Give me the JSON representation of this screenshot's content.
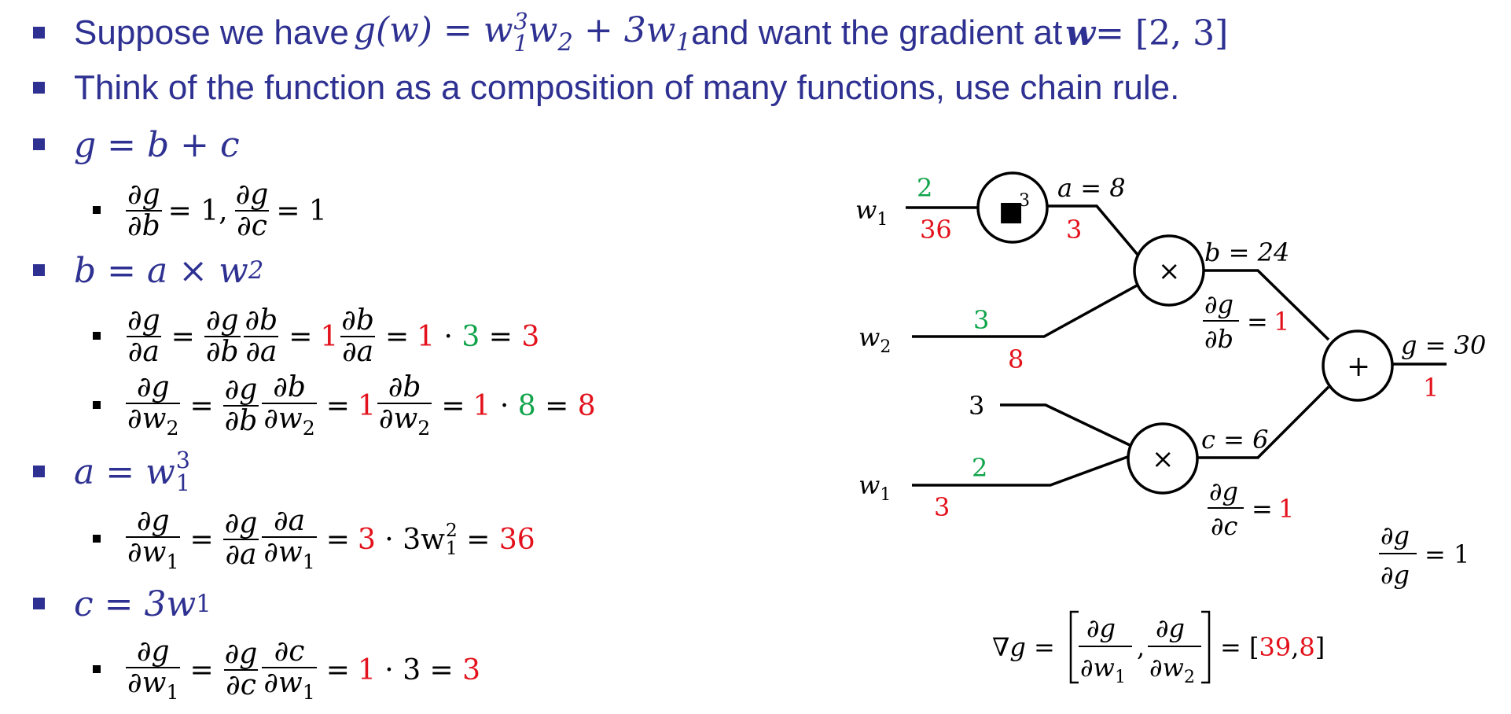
{
  "colors": {
    "blue": "#2e3191",
    "red": "#e3111b",
    "green": "#10a44a",
    "black": "#000000"
  },
  "line1": {
    "lead": "Suppose we have ",
    "fn": "g(w) = w",
    "e3": "3",
    "s1": "1",
    "mid1": "w",
    "s2": "2",
    "plus": " + 3w",
    "s1b": "1",
    "tail": " and want the gradient at ",
    "w": "w",
    "eq": " = [2, 3]"
  },
  "line2": {
    "text": "Think of the function as a composition of many functions, use chain rule."
  },
  "eq_g": "g = b + c",
  "d_g": {
    "n1": "∂g",
    "d1": "∂b",
    "v1": "= 1,",
    "n2": "∂g",
    "d2": "∂c",
    "v2": "= 1"
  },
  "eq_b": {
    "text": "b = a × w",
    "sub": "2"
  },
  "d_b1": {
    "n1": "∂g",
    "d1": "∂a",
    "eq1": "=",
    "n2": "∂g",
    "d2": "∂b",
    "n3": "∂b",
    "d3": "∂a",
    "eq2": "=",
    "r1": "1",
    "n4": "∂b",
    "d4": "∂a",
    "eq3": "=",
    "r2": "1",
    "dot": " · ",
    "g1": "3",
    "eq4": " = ",
    "r3": "3"
  },
  "d_b2": {
    "n1": "∂g",
    "d1": "∂w",
    "d1s": "2",
    "eq1": "=",
    "n2": "∂g",
    "d2": "∂b",
    "n3": "∂b",
    "d3": "∂w",
    "d3s": "2",
    "eq2": "=",
    "r1": "1",
    "n4": "∂b",
    "d4": "∂w",
    "d4s": "2",
    "eq3": "=",
    "r2": "1",
    "dot": " · ",
    "g1": "8",
    "eq4": " = ",
    "r3": "8"
  },
  "eq_a": {
    "text": "a = w",
    "sup": "3",
    "sub": "1"
  },
  "d_a": {
    "n1": "∂g",
    "d1": "∂w",
    "d1s": "1",
    "eq1": "=",
    "n2": "∂g",
    "d2": "∂a",
    "n3": "∂a",
    "d3": "∂w",
    "d3s": "1",
    "eq2": "=",
    "r1": "3",
    "mid": " · 3w",
    "sup": "2",
    "sub": "1",
    "eq3": " = ",
    "r2": "36"
  },
  "eq_c": {
    "text": "c = 3w",
    "sub": "1"
  },
  "d_c": {
    "n1": "∂g",
    "d1": "∂w",
    "d1s": "1",
    "eq1": "=",
    "n2": "∂g",
    "d2": "∂c",
    "n3": "∂c",
    "d3": "∂w",
    "d3s": "1",
    "eq2": "=",
    "r1": "1",
    "mid": " · 3 = ",
    "r2": "3"
  },
  "graph": {
    "w1_top": {
      "label": "w",
      "sub": "1",
      "fwd": "2",
      "bwd": "36"
    },
    "cube_node": {
      "symbol": "■",
      "exp": "3"
    },
    "a_out": {
      "label": "a = 8",
      "bwd": "3"
    },
    "w2": {
      "label": "w",
      "sub": "2",
      "fwd": "3",
      "bwd": "8"
    },
    "mul_top": {
      "symbol": "×"
    },
    "b_out": {
      "label": "b = 24",
      "dn": "∂g",
      "dd": "∂b",
      "eq": "=",
      "val": "1"
    },
    "const3": {
      "label": "3"
    },
    "w1_bottom": {
      "label": "w",
      "sub": "1",
      "fwd": "2",
      "bwd": "3"
    },
    "mul_bottom": {
      "symbol": "×"
    },
    "c_out": {
      "label": "c = 6",
      "dn": "∂g",
      "dd": "∂c",
      "eq": "=",
      "val": "1"
    },
    "plus_node": {
      "symbol": "+"
    },
    "g_out": {
      "label": "g = 30",
      "bwd": "1"
    },
    "dgdg": {
      "dn": "∂g",
      "dd": "∂g",
      "eq": "= 1"
    },
    "grad": {
      "nabla": "∇g =",
      "n1": "∂g",
      "d1": "∂w",
      "d1s": "1",
      "comma": ",",
      "n2": "∂g",
      "d2": "∂w",
      "d2s": "2",
      "eq": "= [",
      "v1": "39",
      "c": ",",
      "v2": "8",
      "close": "]"
    }
  }
}
